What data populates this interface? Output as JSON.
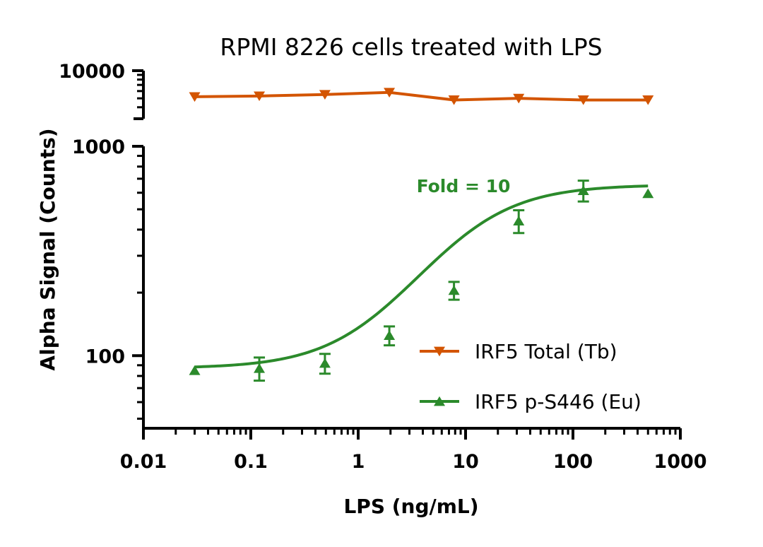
{
  "chart_data": {
    "type": "scatter",
    "title": "RPMI 8226 cells treated with LPS",
    "xlabel": "LPS (ng/mL)",
    "ylabel": "Alpha Signal (Counts)",
    "x_scale": "log",
    "y_scale": "log",
    "y_axis_break": true,
    "xlim": [
      0.01,
      1000
    ],
    "ylim_lower_segment": [
      45,
      1000
    ],
    "ylim_upper_segment": [
      3000,
      10000
    ],
    "x_ticks": [
      "0.01",
      "0.1",
      "1",
      "10",
      "100",
      "1000"
    ],
    "y_ticks_lower": [
      "100",
      "1000"
    ],
    "y_ticks_upper": [
      "10000"
    ],
    "legend_position": "bottom-right",
    "grid": false,
    "annotation": "Fold = 10",
    "series": [
      {
        "name": "IRF5 Total (Tb)",
        "color": "#d35400",
        "marker": "triangle-down",
        "x": [
          0.03,
          0.12,
          0.49,
          1.95,
          7.8,
          31.25,
          125,
          500
        ],
        "y": [
          5200,
          5300,
          5500,
          5800,
          4800,
          5000,
          4800,
          4800
        ]
      },
      {
        "name": "IRF5 p-S446 (Eu)",
        "color": "#2b8a2b",
        "marker": "triangle-up",
        "x": [
          0.03,
          0.12,
          0.49,
          1.95,
          7.8,
          31.25,
          125,
          500
        ],
        "y": [
          85,
          87,
          92,
          125,
          205,
          440,
          615,
          595
        ],
        "error": [
          0,
          11,
          10,
          13,
          20,
          55,
          70,
          0
        ]
      }
    ]
  }
}
